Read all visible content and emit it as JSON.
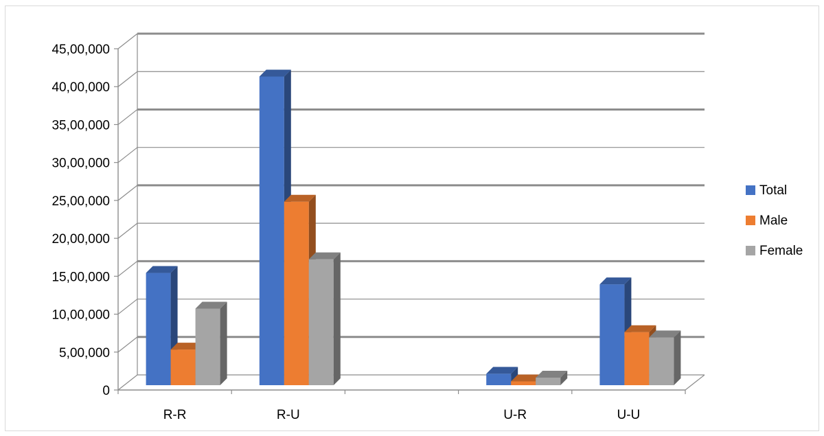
{
  "chart_data": {
    "type": "bar",
    "style": "3d-clustered-column",
    "categories": [
      "R-R",
      "R-U",
      "",
      "U-R",
      "U-U"
    ],
    "series": [
      {
        "name": "Total",
        "color": "#4472c4",
        "values": [
          1480000,
          4070000,
          0,
          150000,
          1330000
        ]
      },
      {
        "name": "Male",
        "color": "#ed7d31",
        "values": [
          470000,
          2420000,
          0,
          50000,
          700000
        ]
      },
      {
        "name": "Female",
        "color": "#a5a5a5",
        "values": [
          1010000,
          1660000,
          0,
          100000,
          630000
        ]
      }
    ],
    "yticks": [
      "0",
      "5,00,000",
      "10,00,000",
      "15,00,000",
      "20,00,000",
      "25,00,000",
      "30,00,000",
      "35,00,000",
      "40,00,000",
      "45,00,000"
    ],
    "ylim": [
      0,
      4500000
    ],
    "grid": true,
    "legend_position": "right",
    "title": "",
    "xlabel": "",
    "ylabel": ""
  }
}
